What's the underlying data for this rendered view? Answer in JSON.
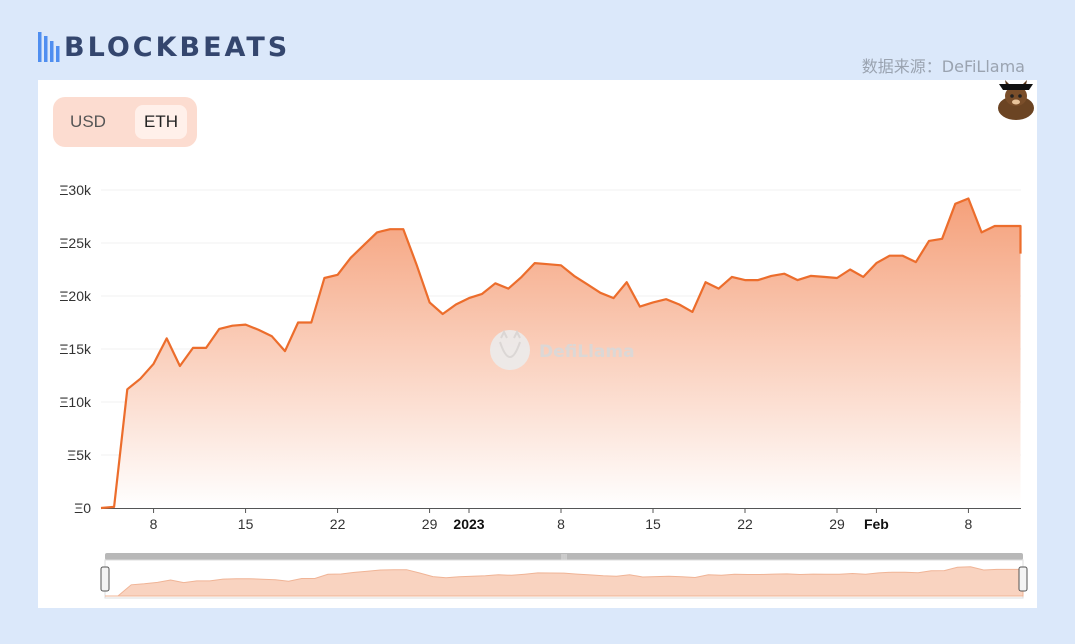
{
  "header": {
    "brand": "BLOCKBEATS",
    "source": "数据来源：DeFiLlama"
  },
  "toggle": {
    "options": [
      "USD",
      "ETH"
    ],
    "selected": "ETH"
  },
  "watermark": "DefiLlama",
  "colors": {
    "line": "#ec6d2c",
    "area_top": "#f5a07a",
    "page_bg": "#dbe8fa",
    "brand": "#34466e",
    "brand_bars": "#4f8ef0"
  },
  "chart_data": {
    "type": "area",
    "ylim": [
      0,
      30000
    ],
    "yticks": [
      {
        "v": 0,
        "label": "Ξ0"
      },
      {
        "v": 5000,
        "label": "Ξ5k"
      },
      {
        "v": 10000,
        "label": "Ξ10k"
      },
      {
        "v": 15000,
        "label": "Ξ15k"
      },
      {
        "v": 20000,
        "label": "Ξ20k"
      },
      {
        "v": 25000,
        "label": "Ξ25k"
      },
      {
        "v": 30000,
        "label": "Ξ30k"
      }
    ],
    "xlim": [
      "2022-12-04",
      "2023-02-11"
    ],
    "xticks": [
      {
        "date": "2022-12-08",
        "label": "8",
        "bold": false
      },
      {
        "date": "2022-12-15",
        "label": "15",
        "bold": false
      },
      {
        "date": "2022-12-22",
        "label": "22",
        "bold": false
      },
      {
        "date": "2022-12-29",
        "label": "29",
        "bold": false
      },
      {
        "date": "2023-01-01",
        "label": "2023",
        "bold": true
      },
      {
        "date": "2023-01-08",
        "label": "8",
        "bold": false
      },
      {
        "date": "2023-01-15",
        "label": "15",
        "bold": false
      },
      {
        "date": "2023-01-22",
        "label": "22",
        "bold": false
      },
      {
        "date": "2023-01-29",
        "label": "29",
        "bold": false
      },
      {
        "date": "2023-02-01",
        "label": "Feb",
        "bold": true
      },
      {
        "date": "2023-02-08",
        "label": "8",
        "bold": false
      }
    ],
    "series": [
      {
        "points": [
          [
            "2022-12-04",
            0
          ],
          [
            "2022-12-05",
            100
          ],
          [
            "2022-12-06",
            11200
          ],
          [
            "2022-12-07",
            12200
          ],
          [
            "2022-12-08",
            13600
          ],
          [
            "2022-12-09",
            16000
          ],
          [
            "2022-12-10",
            13400
          ],
          [
            "2022-12-11",
            15100
          ],
          [
            "2022-12-12",
            15100
          ],
          [
            "2022-12-13",
            16900
          ],
          [
            "2022-12-14",
            17200
          ],
          [
            "2022-12-15",
            17300
          ],
          [
            "2022-12-16",
            16800
          ],
          [
            "2022-12-17",
            16200
          ],
          [
            "2022-12-18",
            14800
          ],
          [
            "2022-12-19",
            17500
          ],
          [
            "2022-12-20",
            17500
          ],
          [
            "2022-12-21",
            21700
          ],
          [
            "2022-12-22",
            22000
          ],
          [
            "2022-12-23",
            23600
          ],
          [
            "2022-12-24",
            24800
          ],
          [
            "2022-12-25",
            26000
          ],
          [
            "2022-12-26",
            26300
          ],
          [
            "2022-12-27",
            26300
          ],
          [
            "2022-12-28",
            23000
          ],
          [
            "2022-12-29",
            19400
          ],
          [
            "2022-12-30",
            18300
          ],
          [
            "2022-12-31",
            19200
          ],
          [
            "2023-01-01",
            19800
          ],
          [
            "2023-01-02",
            20200
          ],
          [
            "2023-01-03",
            21200
          ],
          [
            "2023-01-04",
            20700
          ],
          [
            "2023-01-05",
            21800
          ],
          [
            "2023-01-06",
            23100
          ],
          [
            "2023-01-07",
            23000
          ],
          [
            "2023-01-08",
            22900
          ],
          [
            "2023-01-09",
            21900
          ],
          [
            "2023-01-10",
            21100
          ],
          [
            "2023-01-11",
            20300
          ],
          [
            "2023-01-12",
            19800
          ],
          [
            "2023-01-13",
            21300
          ],
          [
            "2023-01-14",
            19000
          ],
          [
            "2023-01-15",
            19400
          ],
          [
            "2023-01-16",
            19700
          ],
          [
            "2023-01-17",
            19200
          ],
          [
            "2023-01-18",
            18500
          ],
          [
            "2023-01-19",
            21300
          ],
          [
            "2023-01-20",
            20700
          ],
          [
            "2023-01-21",
            21800
          ],
          [
            "2023-01-22",
            21500
          ],
          [
            "2023-01-23",
            21500
          ],
          [
            "2023-01-24",
            21900
          ],
          [
            "2023-01-25",
            22100
          ],
          [
            "2023-01-26",
            21500
          ],
          [
            "2023-01-27",
            21900
          ],
          [
            "2023-01-28",
            21800
          ],
          [
            "2023-01-29",
            21700
          ],
          [
            "2023-01-30",
            22500
          ],
          [
            "2023-01-31",
            21800
          ],
          [
            "2023-02-01",
            23100
          ],
          [
            "2023-02-02",
            23800
          ],
          [
            "2023-02-03",
            23800
          ],
          [
            "2023-02-04",
            23200
          ],
          [
            "2023-02-05",
            25200
          ],
          [
            "2023-02-06",
            25400
          ],
          [
            "2023-02-07",
            28700
          ],
          [
            "2023-02-08",
            29200
          ],
          [
            "2023-02-09",
            26000
          ],
          [
            "2023-02-10",
            26600
          ],
          [
            "2023-02-11",
            26600
          ],
          [
            "2023-02-12",
            26600
          ],
          [
            "2023-02-12",
            24000
          ]
        ]
      }
    ],
    "brush": {
      "start_fraction": 0,
      "end_fraction": 1
    }
  }
}
